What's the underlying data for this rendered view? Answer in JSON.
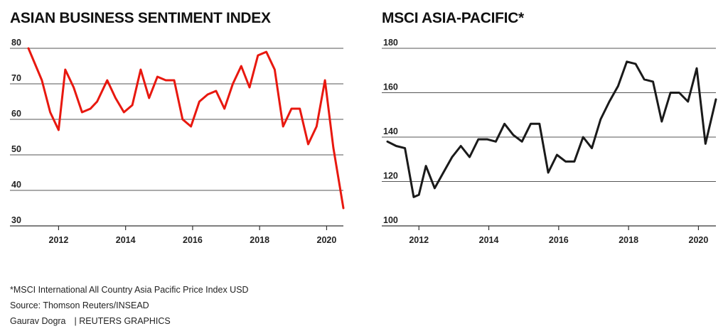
{
  "chart_data": [
    {
      "type": "line",
      "title": "ASIAN BUSINESS SENTIMENT INDEX",
      "xlabel": "",
      "ylabel": "",
      "ylim": [
        30,
        80
      ],
      "yticks": [
        30,
        40,
        50,
        60,
        70,
        80
      ],
      "xlim": [
        2011.1,
        2020.5
      ],
      "xticks": [
        2012,
        2014,
        2016,
        2018,
        2020
      ],
      "grid": true,
      "color": "#e8180f",
      "series": [
        {
          "name": "Asian Business Sentiment Index",
          "x": [
            2011.1,
            2011.5,
            2011.75,
            2012.0,
            2012.2,
            2012.45,
            2012.7,
            2012.95,
            2013.15,
            2013.45,
            2013.7,
            2013.95,
            2014.2,
            2014.45,
            2014.7,
            2014.95,
            2015.2,
            2015.45,
            2015.7,
            2015.95,
            2016.2,
            2016.45,
            2016.7,
            2016.95,
            2017.2,
            2017.45,
            2017.7,
            2017.95,
            2018.2,
            2018.45,
            2018.7,
            2018.95,
            2019.2,
            2019.45,
            2019.7,
            2019.95,
            2020.2,
            2020.5
          ],
          "values": [
            80,
            71,
            62,
            57,
            74,
            69,
            62,
            63,
            65,
            71,
            66,
            62,
            64,
            74,
            66,
            72,
            71,
            71,
            60,
            58,
            65,
            67,
            68,
            63,
            70,
            75,
            69,
            78,
            79,
            74,
            58,
            63,
            63,
            53,
            58,
            71,
            52,
            35
          ]
        }
      ]
    },
    {
      "type": "line",
      "title": "MSCI ASIA-PACIFIC*",
      "xlabel": "",
      "ylabel": "",
      "ylim": [
        100,
        180
      ],
      "yticks": [
        100,
        120,
        140,
        160,
        180
      ],
      "xlim": [
        2011.1,
        2020.5
      ],
      "xticks": [
        2012,
        2014,
        2016,
        2018,
        2020
      ],
      "grid": true,
      "color": "#1a1a1a",
      "series": [
        {
          "name": "MSCI Asia-Pacific",
          "x": [
            2011.1,
            2011.35,
            2011.6,
            2011.85,
            2012.0,
            2012.2,
            2012.45,
            2012.7,
            2012.95,
            2013.2,
            2013.45,
            2013.7,
            2013.95,
            2014.2,
            2014.45,
            2014.7,
            2014.95,
            2015.2,
            2015.45,
            2015.7,
            2015.95,
            2016.2,
            2016.45,
            2016.7,
            2016.95,
            2017.2,
            2017.45,
            2017.7,
            2017.95,
            2018.2,
            2018.45,
            2018.7,
            2018.95,
            2019.2,
            2019.45,
            2019.7,
            2019.95,
            2020.2,
            2020.5
          ],
          "values": [
            138,
            136,
            135,
            113,
            114,
            127,
            117,
            124,
            131,
            136,
            131,
            139,
            139,
            138,
            146,
            141,
            138,
            146,
            146,
            124,
            132,
            129,
            129,
            140,
            135,
            148,
            156,
            163,
            174,
            173,
            166,
            165,
            147,
            160,
            160,
            156,
            171,
            137,
            157
          ]
        }
      ]
    }
  ],
  "titles": {
    "left": "ASIAN BUSINESS SENTIMENT INDEX",
    "right": "MSCI ASIA-PACIFIC*"
  },
  "footnotes": {
    "note": "*MSCI International All Country Asia Pacific Price Index USD",
    "source": "Source: Thomson Reuters/INSEAD",
    "author": "Gaurav Dogra",
    "credit": "| REUTERS GRAPHICS"
  }
}
